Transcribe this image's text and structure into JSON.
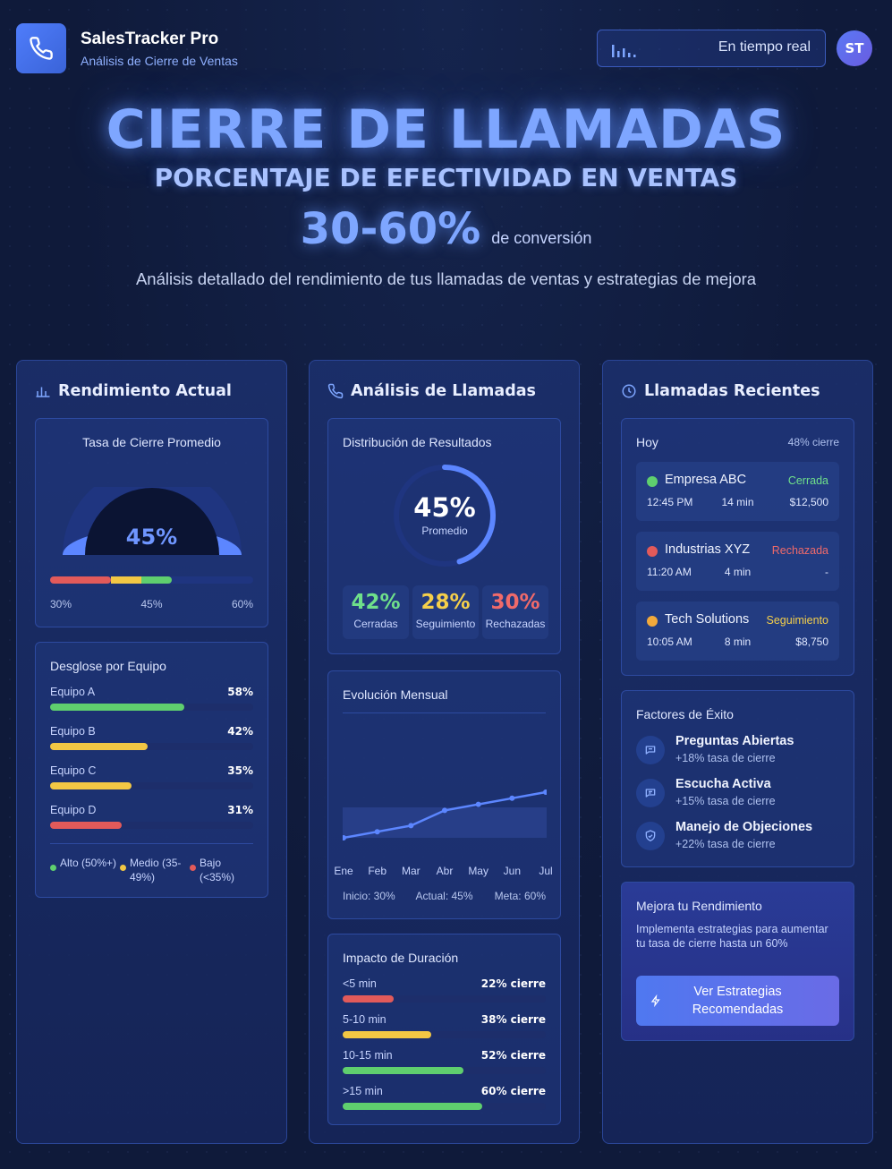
{
  "header": {
    "app_title": "SalesTracker Pro",
    "app_subtitle": "Análisis de Cierre de Ventas",
    "realtime_label": "En tiempo real",
    "avatar_initials": "ST"
  },
  "hero": {
    "title": "CIERRE DE LLAMADAS",
    "subtitle": "PORCENTAJE DE EFECTIVIDAD EN VENTAS",
    "percent": "30-60%",
    "percent_label": "de conversión",
    "description": "Análisis detallado del rendimiento de tus llamadas de ventas y estrategias de mejora"
  },
  "col1": {
    "title": "Rendimiento Actual",
    "gauge": {
      "title": "Tasa de Cierre Promedio",
      "value_label": "45%",
      "value": 45,
      "scale": [
        "30%",
        "45%",
        "60%"
      ]
    },
    "teams": {
      "title": "Desglose por Equipo",
      "items": [
        {
          "name": "Equipo A",
          "label": "58%",
          "value": 58,
          "color": "#5fcf6e"
        },
        {
          "name": "Equipo B",
          "label": "42%",
          "value": 42,
          "color": "#f2c744"
        },
        {
          "name": "Equipo C",
          "label": "35%",
          "value": 35,
          "color": "#f2c744"
        },
        {
          "name": "Equipo D",
          "label": "31%",
          "value": 31,
          "color": "#e25a5a"
        }
      ],
      "legend": [
        {
          "label": "Alto (50%+)",
          "color": "#5fcf6e"
        },
        {
          "label": "Medio (35-49%)",
          "color": "#f2c744"
        },
        {
          "label": "Bajo (<35%)",
          "color": "#e25a5a"
        }
      ]
    }
  },
  "col2": {
    "title": "Análisis de Llamadas",
    "dist": {
      "title": "Distribución de Resultados",
      "center_value": "45%",
      "center_label": "Promedio",
      "progress": 45,
      "stats": [
        {
          "value": "42%",
          "label": "Cerradas",
          "color": "#6fe08a"
        },
        {
          "value": "28%",
          "label": "Seguimiento",
          "color": "#f5cf4a"
        },
        {
          "value": "30%",
          "label": "Rechazadas",
          "color": "#f06a6a"
        }
      ]
    },
    "monthly": {
      "title": "Evolución Mensual",
      "start": "Inicio: 30%",
      "current": "Actual: 45%",
      "goal": "Meta: 60%",
      "chart_data": {
        "type": "line",
        "categories": [
          "Ene",
          "Feb",
          "Mar",
          "Abr",
          "May",
          "Jun",
          "Jul"
        ],
        "values": [
          30,
          32,
          34,
          39,
          41,
          43,
          45
        ],
        "ylim": [
          20,
          70
        ]
      }
    },
    "duration": {
      "title": "Impacto de Duración",
      "items": [
        {
          "label": "<5 min",
          "value_label": "22% cierre",
          "value": 22,
          "color": "#e25a5a"
        },
        {
          "label": "5-10 min",
          "value_label": "38% cierre",
          "value": 38,
          "color": "#f2c744"
        },
        {
          "label": "10-15 min",
          "value_label": "52% cierre",
          "value": 52,
          "color": "#5fcf6e"
        },
        {
          "label": ">15 min",
          "value_label": "60% cierre",
          "value": 60,
          "color": "#5fcf6e"
        }
      ]
    }
  },
  "col3": {
    "title": "Llamadas Recientes",
    "today": {
      "label": "Hoy",
      "rate": "48% cierre",
      "calls": [
        {
          "company": "Empresa ABC",
          "status": "Cerrada",
          "status_color": "#6fe08a",
          "dot": "#5fcf6e",
          "time": "12:45 PM",
          "duration": "14 min",
          "amount": "$12,500"
        },
        {
          "company": "Industrias XYZ",
          "status": "Rechazada",
          "status_color": "#f06a6a",
          "dot": "#e25a5a",
          "time": "11:20 AM",
          "duration": "4 min",
          "amount": "-"
        },
        {
          "company": "Tech Solutions",
          "status": "Seguimiento",
          "status_color": "#f5cf4a",
          "dot": "#f2a93b",
          "time": "10:05 AM",
          "duration": "8 min",
          "amount": "$8,750"
        }
      ]
    },
    "factors": {
      "title": "Factores de Éxito",
      "items": [
        {
          "title": "Preguntas Abiertas",
          "sub": "+18% tasa de cierre",
          "icon": "chat-icon"
        },
        {
          "title": "Escucha Activa",
          "sub": "+15% tasa de cierre",
          "icon": "message-icon"
        },
        {
          "title": "Manejo de Objeciones",
          "sub": "+22% tasa de cierre",
          "icon": "shield-icon"
        }
      ]
    },
    "improve": {
      "title": "Mejora tu Rendimiento",
      "text": "Implementa estrategias para aumentar tu tasa de cierre hasta un 60%",
      "button": "Ver Estrategias Recomendadas"
    }
  }
}
